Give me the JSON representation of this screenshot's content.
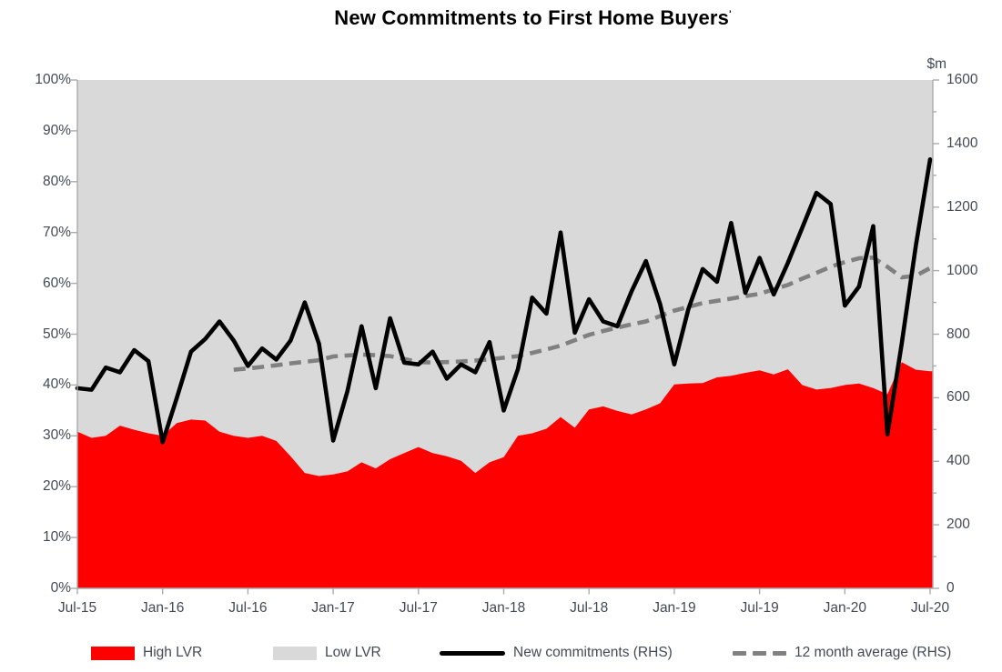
{
  "title": {
    "text": "New Commitments to First Home Buyers",
    "footnote_mark": "'"
  },
  "y_axis_left": {
    "labels": [
      "100%",
      "90%",
      "80%",
      "70%",
      "60%",
      "50%",
      "40%",
      "30%",
      "20%",
      "10%",
      "0%"
    ]
  },
  "y_axis_right": {
    "unit": "$m",
    "labels": [
      "1600",
      "1400",
      "1200",
      "1000",
      "800",
      "600",
      "400",
      "200",
      "0"
    ]
  },
  "x_axis": {
    "labels": [
      "Jul-15",
      "Jan-16",
      "Jul-16",
      "Jan-17",
      "Jul-17",
      "Jan-18",
      "Jul-18",
      "Jan-19",
      "Jul-19",
      "Jan-20",
      "Jul-20"
    ]
  },
  "legend": {
    "items": [
      {
        "label": "High LVR",
        "swatch": "area",
        "color": "#FF0000"
      },
      {
        "label": "Low LVR",
        "swatch": "area",
        "color": "#D9D9D9"
      },
      {
        "label": "New commitments (RHS)",
        "swatch": "line",
        "color": "#000000"
      },
      {
        "label": "12 month average (RHS)",
        "swatch": "dashed-line",
        "color": "#808080"
      }
    ]
  },
  "colors": {
    "high_lvr": "#FF0000",
    "low_lvr": "#D9D9D9",
    "commitments": "#000000",
    "average": "#808080",
    "axis": "#ABABAB",
    "label_text": "#424a53"
  },
  "chart_data": {
    "type": "area",
    "subtype": "combo: 100%-stacked monthly area (LHS, %) with line and dashed moving-average (RHS, $m)",
    "title": "New Commitments to First Home Buyers",
    "xlabel": "",
    "left_axis": {
      "unit": "%",
      "min": 0,
      "max": 100,
      "step": 10,
      "stacked_to": 100
    },
    "right_axis": {
      "unit": "$m",
      "min": 0,
      "max": 1600,
      "step": 200
    },
    "legend_position": "bottom",
    "grid": false,
    "months": [
      "Jul-15",
      "Aug-15",
      "Sep-15",
      "Oct-15",
      "Nov-15",
      "Dec-15",
      "Jan-16",
      "Feb-16",
      "Mar-16",
      "Apr-16",
      "May-16",
      "Jun-16",
      "Jul-16",
      "Aug-16",
      "Sep-16",
      "Oct-16",
      "Nov-16",
      "Dec-16",
      "Jan-17",
      "Feb-17",
      "Mar-17",
      "Apr-17",
      "May-17",
      "Jun-17",
      "Jul-17",
      "Aug-17",
      "Sep-17",
      "Oct-17",
      "Nov-17",
      "Dec-17",
      "Jan-18",
      "Feb-18",
      "Mar-18",
      "Apr-18",
      "May-18",
      "Jun-18",
      "Jul-18",
      "Aug-18",
      "Sep-18",
      "Oct-18",
      "Nov-18",
      "Dec-18",
      "Jan-19",
      "Feb-19",
      "Mar-19",
      "Apr-19",
      "May-19",
      "Jun-19",
      "Jul-19",
      "Aug-19",
      "Sep-19",
      "Oct-19",
      "Nov-19",
      "Dec-19",
      "Jan-20",
      "Feb-20",
      "Mar-20",
      "Apr-20",
      "May-20",
      "Jun-20",
      "Jul-20"
    ],
    "series": [
      {
        "name": "High LVR",
        "type": "area",
        "axis": "left",
        "unit": "%",
        "color": "#FF0000",
        "values": [
          30.8,
          29.6,
          30.0,
          32.0,
          31.2,
          30.5,
          30.0,
          32.5,
          33.2,
          33.0,
          30.8,
          30.0,
          29.6,
          30.0,
          29.0,
          26.0,
          22.7,
          22.1,
          22.4,
          23.0,
          24.8,
          23.6,
          25.4,
          26.6,
          27.8,
          26.6,
          26.0,
          25.1,
          22.7,
          24.8,
          25.8,
          30.0,
          30.5,
          31.4,
          33.7,
          31.6,
          35.2,
          35.8,
          34.9,
          34.2,
          35.2,
          36.4,
          40.1,
          40.3,
          40.4,
          41.5,
          41.8,
          42.4,
          42.9,
          42.1,
          43.1,
          40.0,
          39.1,
          39.4,
          40.0,
          40.3,
          39.4,
          38.2,
          44.5,
          43.0,
          42.7
        ]
      },
      {
        "name": "Low LVR",
        "type": "area",
        "axis": "left",
        "unit": "%",
        "color": "#D9D9D9",
        "stacked_remainder_to": 100
      },
      {
        "name": "New commitments (RHS)",
        "type": "line",
        "axis": "right",
        "unit": "$m",
        "color": "#000000",
        "values": [
          630,
          625,
          695,
          680,
          750,
          715,
          460,
          600,
          745,
          785,
          840,
          780,
          700,
          755,
          720,
          780,
          900,
          770,
          465,
          620,
          825,
          630,
          850,
          710,
          705,
          745,
          660,
          705,
          680,
          775,
          560,
          690,
          915,
          865,
          1120,
          805,
          910,
          840,
          825,
          935,
          1030,
          895,
          705,
          880,
          1005,
          965,
          1150,
          930,
          1040,
          925,
          1025,
          1135,
          1245,
          1210,
          890,
          950,
          1140,
          485,
          770,
          1080,
          1350
        ]
      },
      {
        "name": "12 month average (RHS)",
        "type": "dashed-line",
        "axis": "right",
        "unit": "$m",
        "color": "#808080",
        "values": [
          null,
          null,
          null,
          null,
          null,
          null,
          null,
          null,
          null,
          null,
          null,
          688,
          692,
          697,
          702,
          708,
          713,
          718,
          730,
          733,
          736,
          734,
          731,
          722,
          712,
          711,
          712,
          714,
          717,
          721,
          726,
          731,
          741,
          752,
          764,
          781,
          798,
          810,
          821,
          831,
          840,
          857,
          874,
          886,
          898,
          905,
          912,
          920,
          927,
          941,
          955,
          975,
          993,
          1012,
          1027,
          1039,
          1041,
          1012,
          979,
          984,
          1008
        ]
      }
    ]
  }
}
